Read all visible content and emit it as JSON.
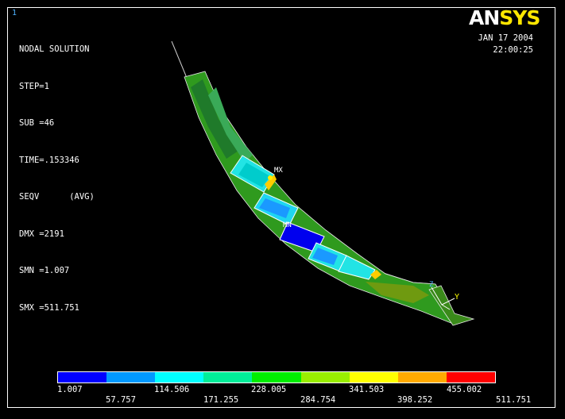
{
  "window": {
    "number": "1"
  },
  "logo": {
    "part1": "AN",
    "part2": "SYS"
  },
  "info": {
    "title": "NODAL SOLUTION",
    "lines": [
      "STEP=1",
      "SUB =46",
      "TIME=.153346",
      "SEQV      (AVG)",
      "DMX =2191",
      "SMN =1.007",
      "SMX =511.751"
    ]
  },
  "timestamp": {
    "date": "JAN 17 2004",
    "time": "22:00:25"
  },
  "markers": {
    "max": "MX",
    "min": "MN",
    "z_axis": "Z",
    "y_axis": "Y"
  },
  "legend": {
    "colors": [
      "#0000ff",
      "#0099ff",
      "#00ffff",
      "#00ee99",
      "#00ee00",
      "#99ee00",
      "#ffff00",
      "#ffaa00",
      "#ff0000"
    ],
    "values_top": [
      "1.007",
      "114.506",
      "228.005",
      "341.503",
      "455.002"
    ],
    "values_bottom": [
      "57.757",
      "171.255",
      "284.754",
      "398.252",
      "511.751"
    ]
  }
}
